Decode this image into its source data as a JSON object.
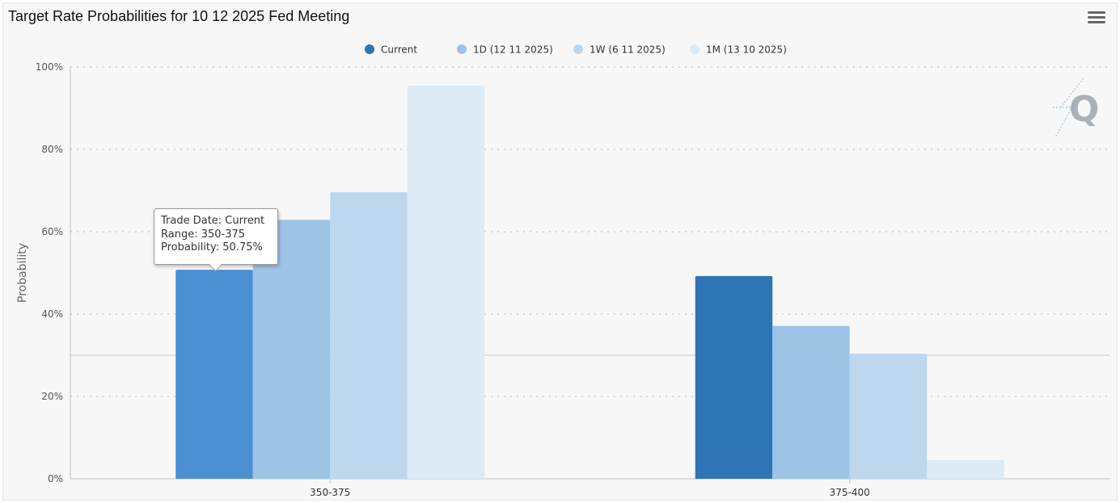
{
  "title": "Target Rate Probabilities for 10 12 2025 Fed Meeting",
  "icons": {
    "menu": "hamburger-menu-icon",
    "logo": "q-logo-icon"
  },
  "tooltip": {
    "line1": "Trade Date: Current",
    "line2": "Range: 350-375",
    "line3": "Probability: 50.75%"
  },
  "chart_data": {
    "type": "bar",
    "title": "Target Rate Probabilities for 10 12 2025 Fed Meeting",
    "xlabel": "",
    "ylabel": "Probability",
    "categories": [
      "350-375",
      "375-400"
    ],
    "ylim": [
      0,
      100
    ],
    "yticks": [
      0,
      20,
      40,
      60,
      80,
      100
    ],
    "ytick_labels": [
      "0%",
      "20%",
      "40%",
      "60%",
      "80%",
      "100%"
    ],
    "grid": true,
    "legend_position": "top-center",
    "series": [
      {
        "name": "Current",
        "values": [
          50.75,
          49.25
        ],
        "color": "#2e75b6"
      },
      {
        "name": "1D (12 11 2025)",
        "values": [
          62.9,
          37.1
        ],
        "color": "#9dc3e6"
      },
      {
        "name": "1W (6 11 2025)",
        "values": [
          69.6,
          30.4
        ],
        "color": "#bdd7ee"
      },
      {
        "name": "1M (13 10 2025)",
        "values": [
          95.5,
          4.5
        ],
        "color": "#ddebf7"
      }
    ],
    "highlight": {
      "series": 0,
      "category": 0,
      "color": "#4a8fd1"
    }
  }
}
